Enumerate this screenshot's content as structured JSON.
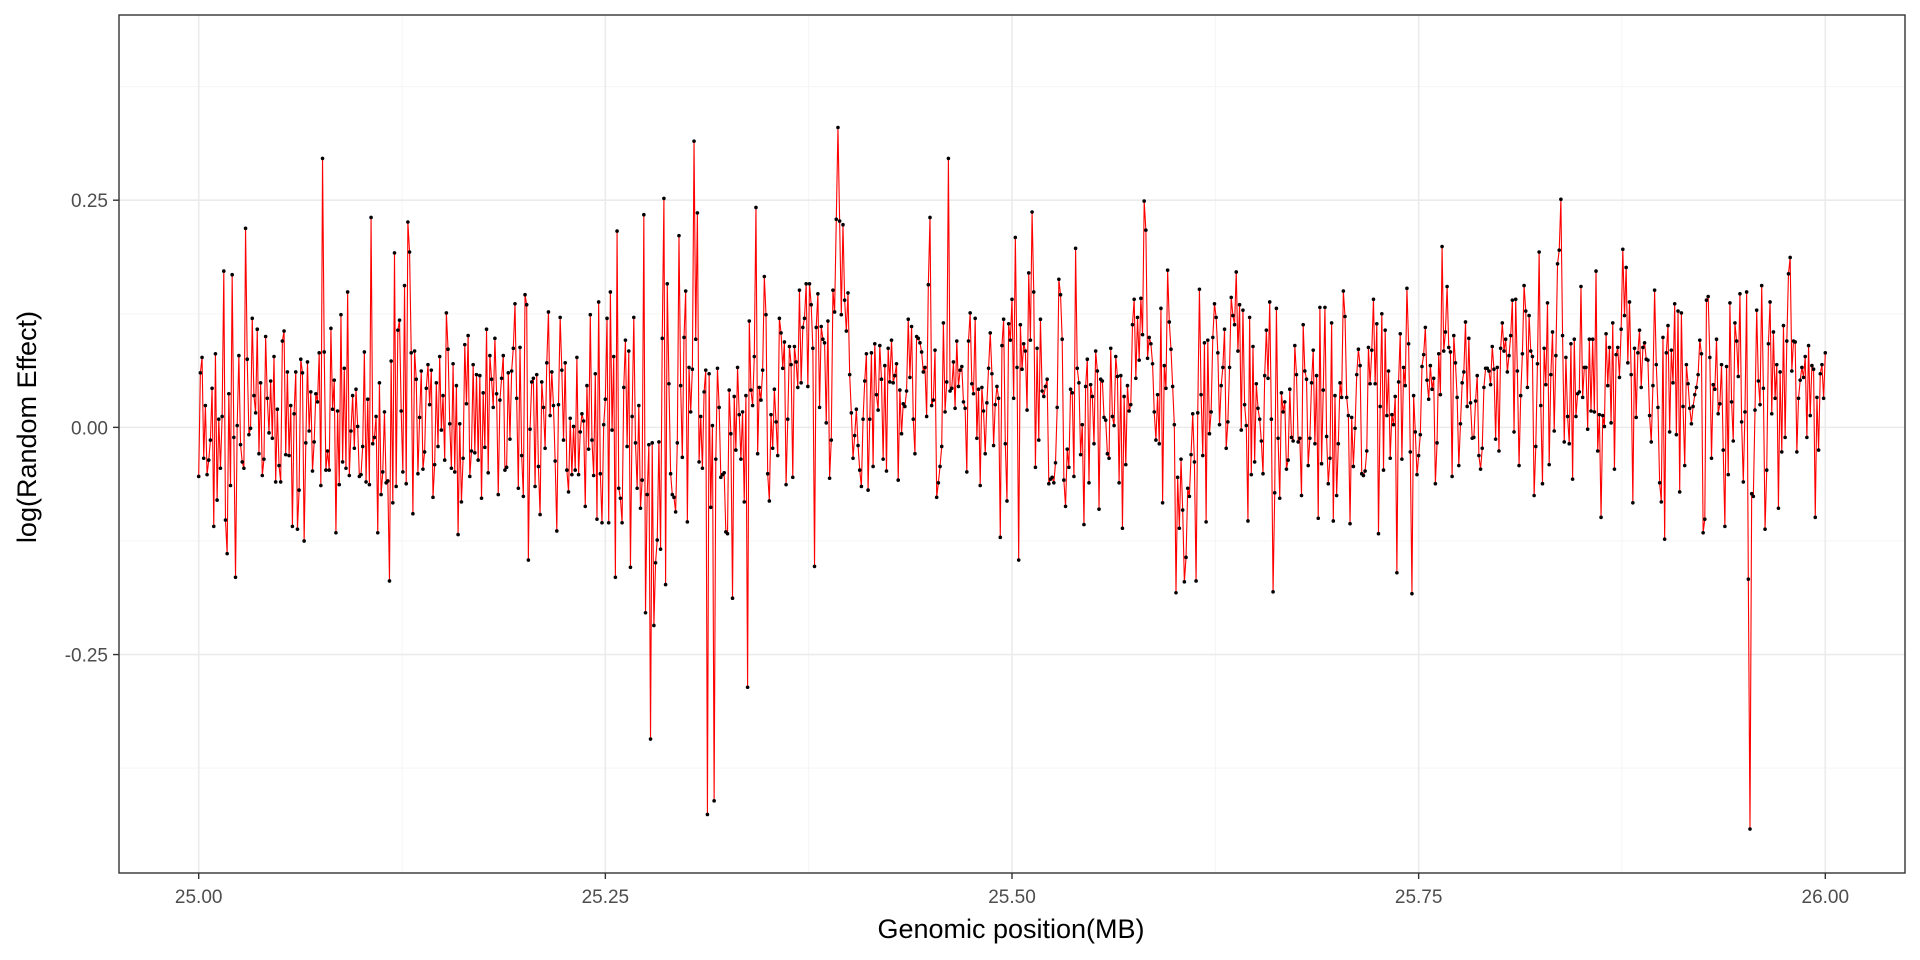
{
  "chart_data": {
    "type": "line",
    "title": "",
    "xlabel": "Genomic position(MB)",
    "ylabel": "log(Random Effect)",
    "xlim": [
      24.951,
      26.049
    ],
    "ylim": [
      -0.4904,
      0.4538
    ],
    "x_ticks": [
      25.0,
      25.25,
      25.5,
      25.75,
      26.0
    ],
    "x_tick_labels": [
      "25.00",
      "25.25",
      "25.50",
      "25.75",
      "26.00"
    ],
    "y_ticks": [
      -0.25,
      0.0,
      0.25
    ],
    "y_tick_labels": [
      "-0.25",
      "0.00",
      "0.25"
    ],
    "grid": true,
    "legend": "none",
    "colors": {
      "line": "#ff0000",
      "points": "#000000",
      "grid_major": "#ebebeb",
      "grid_minor": "#f5f5f5",
      "panel_border": "#333333"
    },
    "series": [
      {
        "x_start": 25.0,
        "x_end": 26.0,
        "values": [
          -0.054,
          0.06,
          0.077,
          -0.034,
          0.024,
          -0.052,
          -0.036,
          -0.014,
          0.043,
          -0.109,
          0.081,
          -0.08,
          0.009,
          -0.045,
          0.012,
          0.172,
          -0.102,
          -0.139,
          0.037,
          -0.064,
          0.168,
          -0.011,
          -0.165,
          0.002,
          0.079,
          -0.019,
          -0.038,
          -0.045,
          0.219,
          0.075,
          -0.008,
          -0.001,
          0.12,
          0.035,
          0.016,
          0.108,
          -0.029,
          0.049,
          -0.053,
          -0.035,
          0.1,
          0.032,
          -0.006,
          0.051,
          -0.012,
          0.078,
          -0.06,
          0.02,
          -0.042,
          -0.06,
          0.095,
          0.106,
          -0.03,
          0.061,
          -0.031,
          0.024,
          -0.109,
          0.015,
          0.061,
          -0.112,
          -0.069,
          0.075,
          0.06,
          -0.125,
          -0.017,
          0.072,
          -0.004,
          0.039,
          -0.048,
          -0.016,
          0.037,
          0.028,
          0.082,
          -0.064,
          0.296,
          0.083,
          -0.047,
          -0.026,
          -0.047,
          0.109,
          0.02,
          0.052,
          -0.116,
          0.018,
          -0.063,
          0.124,
          -0.038,
          0.065,
          -0.045,
          0.149,
          -0.053,
          -0.004,
          0.035,
          -0.023,
          0.042,
          0.001,
          -0.054,
          -0.052,
          -0.021,
          0.083,
          -0.06,
          0.031,
          -0.063,
          0.231,
          -0.018,
          -0.011,
          0.012,
          -0.116,
          0.049,
          -0.074,
          -0.049,
          0.017,
          -0.061,
          -0.059,
          -0.169,
          0.073,
          -0.083,
          0.192,
          -0.065,
          0.107,
          0.118,
          0.018,
          -0.049,
          0.156,
          -0.062,
          0.226,
          0.193,
          0.082,
          -0.095,
          0.084,
          0.053,
          -0.051,
          0.011,
          0.062,
          -0.046,
          -0.027,
          0.043,
          0.069,
          0.025,
          0.063,
          -0.077,
          -0.041,
          0.049,
          -0.021,
          0.078,
          -0.003,
          0.035,
          -0.036,
          0.126,
          0.086,
          0.004,
          -0.045,
          0.07,
          -0.049,
          0.046,
          -0.118,
          0.004,
          -0.082,
          -0.034,
          0.091,
          0.026,
          0.101,
          -0.054,
          -0.026,
          0.069,
          -0.028,
          0.058,
          -0.036,
          0.057,
          -0.078,
          0.038,
          -0.022,
          0.108,
          -0.05,
          0.079,
          0.053,
          0.022,
          0.098,
          0.037,
          -0.074,
          0.03,
          0.054,
          0.079,
          -0.047,
          -0.044,
          0.06,
          -0.013,
          0.062,
          0.087,
          0.136,
          0.032,
          -0.067,
          0.088,
          -0.031,
          -0.076,
          0.146,
          0.135,
          -0.146,
          -0.002,
          0.05,
          0.054,
          -0.065,
          0.058,
          -0.043,
          -0.096,
          0.05,
          0.022,
          -0.023,
          0.071,
          0.127,
          0.013,
          0.061,
          0.024,
          -0.037,
          -0.114,
          0.025,
          0.121,
          0.063,
          -0.014,
          0.071,
          -0.047,
          -0.071,
          0.01,
          -0.052,
          0.001,
          -0.047,
          0.077,
          -0.052,
          -0.005,
          0.015,
          0.007,
          -0.087,
          0.046,
          -0.024,
          0.124,
          -0.014,
          -0.053,
          0.059,
          -0.101,
          0.138,
          -0.051,
          -0.105,
          0.003,
          0.031,
          0.12,
          -0.105,
          0.149,
          -0.003,
          0.078,
          -0.165,
          0.216,
          -0.067,
          -0.078,
          -0.105,
          0.044,
          0.096,
          -0.021,
          0.084,
          -0.154,
          0.012,
          0.121,
          -0.017,
          -0.067,
          0.024,
          -0.089,
          -0.058,
          0.234,
          -0.204,
          -0.074,
          -0.019,
          -0.343,
          -0.017,
          -0.218,
          -0.149,
          -0.124,
          -0.016,
          -0.134,
          0.098,
          0.252,
          -0.173,
          0.158,
          0.048,
          -0.051,
          -0.074,
          -0.077,
          -0.093,
          -0.017,
          0.211,
          0.046,
          -0.033,
          0.099,
          0.15,
          -0.104,
          0.066,
          0.017,
          0.064,
          0.315,
          0.097,
          0.236,
          -0.038,
          0.012,
          -0.045,
          0.039,
          0.063,
          -0.426,
          0.059,
          -0.088,
          0.002,
          -0.411,
          -0.035,
          0.065,
          0.022,
          -0.055,
          -0.052,
          -0.05,
          -0.115,
          -0.117,
          0.041,
          -0.007,
          -0.188,
          0.034,
          -0.025,
          0.066,
          0.014,
          -0.035,
          0.017,
          -0.082,
          0.035,
          -0.286,
          0.117,
          0.041,
          0.024,
          0.078,
          0.242,
          -0.029,
          0.044,
          0.03,
          0.063,
          0.166,
          0.124,
          -0.051,
          -0.081,
          0.014,
          -0.023,
          0.042,
          0.006,
          -0.031,
          0.12,
          0.104,
          0.065,
          0.094,
          -0.063,
          0.009,
          0.089,
          0.069,
          -0.055,
          0.089,
          0.072,
          0.044,
          0.151,
          0.049,
          0.11,
          0.12,
          0.158,
          0.045,
          0.158,
          0.135,
          0.087,
          -0.153,
          0.11,
          0.147,
          0.022,
          0.111,
          0.097,
          0.093,
          0.005,
          0.117,
          -0.056,
          -0.014,
          0.151,
          0.127,
          0.229,
          0.33,
          0.227,
          0.124,
          0.223,
          0.14,
          0.106,
          0.148,
          0.058,
          0.016,
          -0.034,
          -0.009,
          0.02,
          -0.02,
          -0.047,
          -0.065,
          0.009,
          0.051,
          0.081,
          -0.069,
          0.009,
          0.082,
          -0.043,
          0.092,
          0.036,
          0.019,
          0.09,
          0.053,
          -0.035,
          0.068,
          -0.048,
          0.087,
          0.05,
          0.096,
          0.049,
          0.057,
          0.07,
          -0.058,
          0.041,
          -0.007,
          0.026,
          0.023,
          0.04,
          0.119,
          0.055,
          0.111,
          0.009,
          -0.029,
          0.1,
          0.098,
          0.093,
          0.083,
          0.061,
          0.066,
          0.012,
          0.157,
          0.231,
          0.024,
          0.03,
          0.085,
          -0.077,
          -0.061,
          -0.043,
          -0.021,
          0.115,
          0.017,
          0.05,
          0.296,
          0.04,
          0.043,
          0.072,
          0.021,
          0.095,
          0.045,
          0.063,
          0.067,
          0.028,
          0.021,
          -0.049,
          0.095,
          0.126,
          0.048,
          0.037,
          0.12,
          -0.012,
          0.042,
          -0.064,
          0.044,
          0.018,
          -0.029,
          0.027,
          0.065,
          0.104,
          0.059,
          -0.02,
          0.025,
          0.045,
          0.032,
          -0.121,
          0.09,
          0.119,
          -0.018,
          -0.081,
          0.114,
          0.096,
          0.141,
          0.032,
          0.209,
          0.066,
          -0.146,
          0.113,
          0.064,
          0.092,
          0.084,
          0.019,
          0.17,
          0.096,
          0.237,
          0.149,
          -0.044,
          0.087,
          -0.014,
          0.119,
          0.04,
          0.034,
          0.045,
          0.053,
          -0.062,
          -0.057,
          -0.055,
          -0.061,
          -0.039,
          0.022,
          0.163,
          0.146,
          0.097,
          -0.058,
          -0.087,
          -0.024,
          -0.044,
          0.042,
          0.038,
          -0.054,
          0.197,
          0.065,
          0.049,
          -0.03,
          0.003,
          -0.107,
          0.045,
          0.075,
          -0.061,
          0.047,
          0.034,
          -0.018,
          0.084,
          0.062,
          -0.09,
          0.053,
          0.051,
          0.011,
          0.008,
          -0.029,
          -0.034,
          0.087,
          0.012,
          0.002,
          0.078,
          0.056,
          -0.061,
          0.057,
          -0.111,
          0.034,
          -0.041,
          0.046,
          0.018,
          0.025,
          0.113,
          0.141,
          0.054,
          0.121,
          0.074,
          0.142,
          0.102,
          0.249,
          0.217,
          0.076,
          0.099,
          0.092,
          0.07,
          0.017,
          -0.014,
          0.036,
          -0.018,
          0.131,
          -0.083,
          0.068,
          0.043,
          0.173,
          0.116,
          0.086,
          0.045,
          0.003,
          -0.182,
          -0.055,
          -0.111,
          -0.035,
          -0.091,
          -0.17,
          -0.143,
          -0.067,
          -0.076,
          -0.03,
          0.015,
          -0.038,
          -0.169,
          0.016,
          0.152,
          0.036,
          -0.031,
          0.093,
          -0.104,
          0.096,
          -0.007,
          0.017,
          0.099,
          0.136,
          0.121,
          0.082,
          0.003,
          0.046,
          0.066,
          0.108,
          -0.023,
          0.006,
          0.066,
          0.143,
          0.123,
          0.113,
          0.171,
          0.084,
          0.135,
          -0.003,
          0.129,
          0.025,
          0.002,
          -0.103,
          0.121,
          -0.052,
          0.089,
          -0.038,
          0.048,
          0.021,
          0.009,
          -0.015,
          -0.051,
          0.057,
          0.107,
          0.054,
          0.138,
          0.009,
          -0.181,
          -0.072,
          0.131,
          -0.012,
          -0.078,
          0.038,
          0.017,
          0.028,
          -0.046,
          -0.036,
          0.042,
          -0.011,
          -0.015,
          0.09,
          0.058,
          -0.016,
          -0.012,
          -0.075,
          0.113,
          0.062,
          0.053,
          -0.042,
          -0.012,
          0.049,
          0.085,
          -0.018,
          0.057,
          -0.1,
          0.132,
          -0.04,
          0.041,
          0.132,
          -0.01,
          -0.062,
          -0.034,
          0.115,
          -0.103,
          0.035,
          -0.075,
          -0.018,
          0.049,
          0.033,
          0.15,
          0.122,
          0.033,
          0.013,
          -0.106,
          0.011,
          -0.043,
          -0.001,
          0.058,
          0.086,
          0.068,
          -0.051,
          -0.053,
          -0.048,
          -0.026,
          0.088,
          0.048,
          0.085,
          0.141,
          0.048,
          0.114,
          -0.117,
          0.023,
          0.125,
          -0.047,
          0.107,
          0.013,
          0.062,
          -0.034,
          0.014,
          0.003,
          0.034,
          -0.16,
          0.05,
          0.103,
          -0.035,
          0.066,
          0.046,
          0.153,
          0.092,
          -0.027,
          -0.183,
          0.035,
          -0.005,
          -0.052,
          -0.031,
          -0.008,
          0.067,
          0.08,
          0.11,
          0.052,
          0.031,
          0.068,
          0.042,
          0.054,
          -0.062,
          -0.017,
          0.081,
          0.036,
          0.199,
          0.084,
          0.105,
          0.155,
          0.088,
          0.083,
          -0.054,
          0.101,
          0.071,
          0.033,
          -0.042,
          0.004,
          0.049,
          0.061,
          0.116,
          0.023,
          0.098,
          0.027,
          -0.012,
          -0.011,
          0.029,
          0.057,
          -0.031,
          -0.046,
          -0.023,
          0.044,
          0.065,
          0.065,
          0.062,
          0.047,
          0.089,
          0.064,
          -0.013,
          0.066,
          -0.026,
          0.087,
          0.115,
          0.084,
          0.097,
          0.061,
          0.079,
          0.101,
          0.14,
          -0.005,
          0.141,
          0.062,
          -0.042,
          0.035,
          0.081,
          0.156,
          0.128,
          0.044,
          0.123,
          0.084,
          0.078,
          -0.075,
          -0.021,
          0.07,
          0.193,
          0.024,
          -0.062,
          0.087,
          0.047,
          0.137,
          -0.041,
          0.058,
          0.105,
          -0.004,
          0.079,
          0.18,
          0.195,
          0.251,
          0.101,
          -0.016,
          0.077,
          0.012,
          -0.018,
          0.092,
          -0.057,
          0.097,
          0.012,
          0.037,
          0.039,
          0.155,
          0.033,
          0.066,
          0.066,
          -0.002,
          0.097,
          0.018,
          0.097,
          0.017,
          0.172,
          -0.026,
          0.014,
          -0.099,
          0.013,
          0.001,
          0.103,
          0.046,
          0.088,
          0.005,
          0.115,
          -0.046,
          0.08,
          0.088,
          0.055,
          0.108,
          0.196,
          0.123,
          0.176,
          0.071,
          0.138,
          0.058,
          -0.083,
          0.087,
          0.011,
          0.082,
          0.107,
          0.044,
          0.088,
          0.093,
          0.075,
          0.074,
          0.013,
          -0.016,
          0.046,
          0.151,
          0.069,
          0.022,
          -0.061,
          -0.082,
          0.099,
          -0.123,
          0.082,
          0.112,
          -0.005,
          0.085,
          0.049,
          0.136,
          -0.008,
          0.128,
          -0.071,
          0.126,
          0.023,
          -0.042,
          0.069,
          0.048,
          0.021,
          0.004,
          0.023,
          0.036,
          0.044,
          0.058,
          0.096,
          0.081,
          -0.116,
          -0.101,
          0.14,
          0.144,
          0.077,
          -0.034,
          0.047,
          0.042,
          0.097,
          0.015,
          0.026,
          0.069,
          -0.025,
          -0.109,
          0.067,
          -0.052,
          0.137,
          0.028,
          -0.015,
          0.115,
          0.095,
          0.056,
          0.147,
          0.006,
          -0.06,
          0.017,
          0.149,
          -0.167,
          -0.442,
          -0.073,
          -0.076,
          0.019,
          0.129,
          0.051,
          0.025,
          0.156,
          0.043,
          -0.112,
          -0.047,
          0.092,
          0.138,
          0.015,
          0.105,
          0.032,
          0.069,
          -0.089,
          0.061,
          -0.027,
          0.112,
          -0.011,
          0.095,
          0.169,
          0.187,
          0.062,
          0.095,
          0.094,
          -0.027,
          0.032,
          0.052,
          0.066,
          0.055,
          0.078,
          -0.011,
          0.09,
          0.013,
          0.068,
          0.064,
          -0.099,
          0.033,
          -0.025,
          0.059,
          0.069,
          0.032,
          0.082
        ]
      }
    ]
  }
}
